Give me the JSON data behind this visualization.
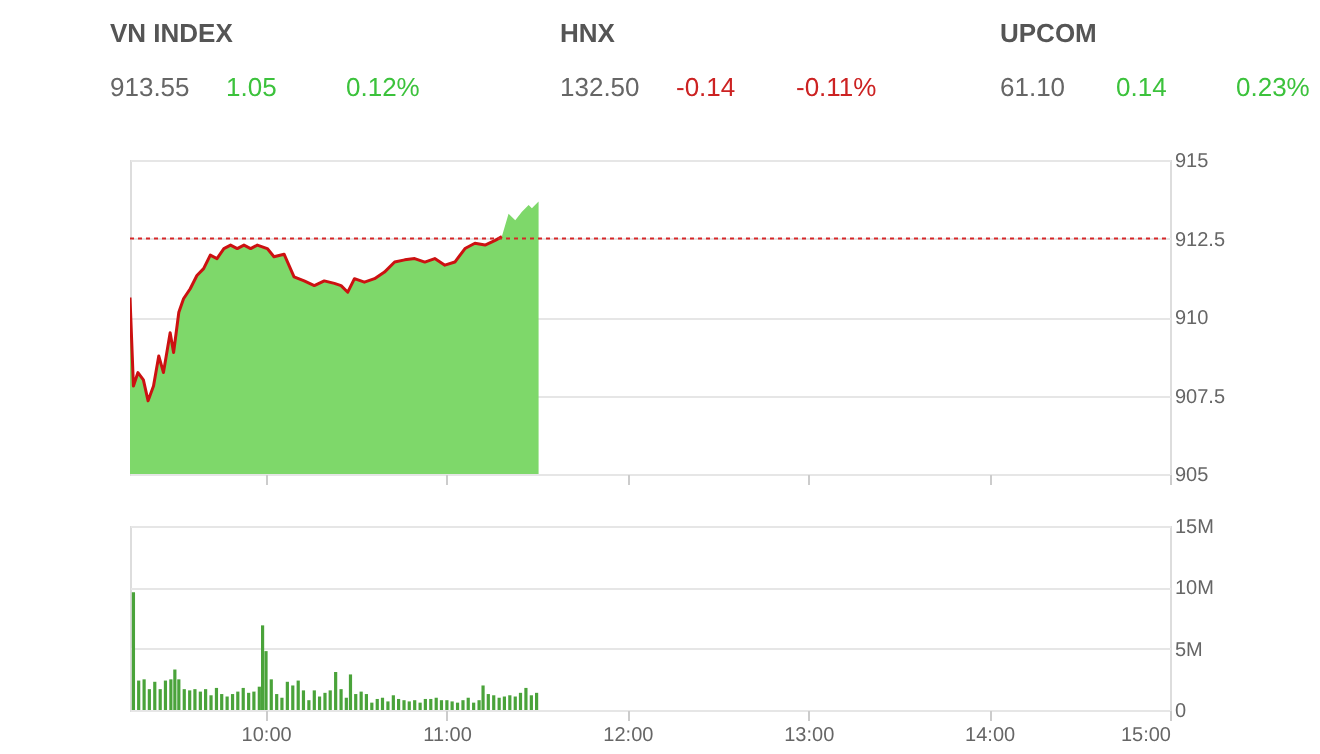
{
  "chart_data": [
    {
      "type": "other",
      "annotations": [
        "VN INDEX",
        "913.55",
        "1.05",
        "0.12%",
        "HNX",
        "132.50",
        "-0.14",
        "-0.11%",
        "UPCOM",
        "61.10",
        "0.14",
        "0.23%"
      ],
      "colors": [
        "#555555",
        "#666666",
        "#3cc23c",
        "#3cc23c",
        "#555555",
        "#666666",
        "#cc2222",
        "#cc2222",
        "#555555",
        "#666666",
        "#3cc23c",
        "#3cc23c"
      ]
    },
    {
      "type": "line",
      "xlim": [
        9.25,
        15
      ],
      "ylim": [
        905,
        915
      ],
      "yticks": [
        905,
        907.5,
        910,
        912.5,
        915
      ],
      "xticks": [
        {
          "value": 10,
          "label": null
        },
        {
          "value": 11,
          "label": null
        },
        {
          "value": 12,
          "label": null
        },
        {
          "value": 13,
          "label": null
        },
        {
          "value": 14,
          "label": null
        },
        {
          "value": 15,
          "label": null
        }
      ],
      "tick_labels": "y",
      "grid": "y",
      "ref_lines": [
        {
          "axis": "y",
          "value": 912.5,
          "color": "#d62728",
          "line_style": "dotted"
        }
      ],
      "x": [
        9.25,
        9.269,
        9.294,
        9.324,
        9.35,
        9.38,
        9.409,
        9.435,
        9.472,
        9.491,
        9.52,
        9.546,
        9.583,
        9.62,
        9.657,
        9.694,
        9.731,
        9.769,
        9.806,
        9.843,
        9.88,
        9.917,
        9.954,
        10.009,
        10.046,
        10.102,
        10.157,
        10.213,
        10.269,
        10.324,
        10.38,
        10.417,
        10.454,
        10.491,
        10.546,
        10.602,
        10.657,
        10.713,
        10.769,
        10.824,
        10.88,
        10.935,
        10.991,
        11.046,
        11.102,
        11.157,
        11.213,
        11.269,
        11.306,
        11.343,
        11.38,
        11.417,
        11.454,
        11.472,
        11.509
      ],
      "series": [
        {
          "type": "area",
          "color": "#7ed86a",
          "values": [
            910.62,
            907.8,
            908.23,
            908.0,
            907.33,
            907.8,
            908.76,
            908.23,
            909.5,
            908.87,
            910.15,
            910.58,
            910.9,
            911.32,
            911.54,
            911.97,
            911.86,
            912.18,
            912.29,
            912.18,
            912.29,
            912.18,
            912.29,
            912.18,
            911.92,
            912.0,
            911.28,
            911.15,
            911.0,
            911.15,
            911.07,
            911.0,
            910.79,
            911.22,
            911.11,
            911.22,
            911.43,
            911.75,
            911.82,
            911.86,
            911.75,
            911.86,
            911.65,
            911.75,
            912.18,
            912.35,
            912.29,
            912.44,
            912.56,
            913.29,
            913.08,
            913.35,
            913.57,
            913.46,
            913.68
          ]
        },
        {
          "type": "line",
          "color": "#cc1111",
          "x": [
            9.25,
            9.269,
            9.294,
            9.324,
            9.35,
            9.38,
            9.409,
            9.435,
            9.472,
            9.491,
            9.52,
            9.546,
            9.583,
            9.62,
            9.657,
            9.694,
            9.731,
            9.769,
            9.806,
            9.843,
            9.88,
            9.917,
            9.954,
            10.009,
            10.046,
            10.102,
            10.157,
            10.213,
            10.269,
            10.324,
            10.38,
            10.417,
            10.454,
            10.491,
            10.546,
            10.602,
            10.657,
            10.713,
            10.769,
            10.824,
            10.88,
            10.935,
            10.991,
            11.046,
            11.102,
            11.157,
            11.213,
            11.269,
            11.306
          ],
          "values": [
            910.62,
            907.8,
            908.23,
            908.0,
            907.33,
            907.8,
            908.76,
            908.23,
            909.5,
            908.87,
            910.15,
            910.58,
            910.9,
            911.32,
            911.54,
            911.97,
            911.86,
            912.18,
            912.29,
            912.18,
            912.29,
            912.18,
            912.29,
            912.18,
            911.92,
            912.0,
            911.28,
            911.15,
            911.0,
            911.15,
            911.07,
            911.0,
            910.79,
            911.22,
            911.11,
            911.22,
            911.43,
            911.75,
            911.82,
            911.86,
            911.75,
            911.86,
            911.65,
            911.75,
            912.18,
            912.35,
            912.29,
            912.44,
            912.56
          ]
        }
      ]
    },
    {
      "type": "bar",
      "xlim": [
        9.25,
        15
      ],
      "ylim": [
        0,
        15000000
      ],
      "yticks": [
        0,
        {
          "value": 5000000,
          "label": "5M"
        },
        {
          "value": 10000000,
          "label": "10M"
        },
        {
          "value": 15000000,
          "label": "15M"
        }
      ],
      "xticks": [
        {
          "value": 10,
          "label": "10:00"
        },
        {
          "value": 11,
          "label": "11:00"
        },
        {
          "value": 12,
          "label": "12:00"
        },
        {
          "value": 13,
          "label": "13:00"
        },
        {
          "value": 14,
          "label": "14:00"
        },
        {
          "value": 15,
          "label": "15:00"
        }
      ],
      "grid": "y",
      "color": "#4aa33a",
      "x": [
        9.269,
        9.298,
        9.328,
        9.357,
        9.387,
        9.417,
        9.446,
        9.476,
        9.498,
        9.52,
        9.55,
        9.58,
        9.609,
        9.639,
        9.668,
        9.698,
        9.728,
        9.757,
        9.787,
        9.817,
        9.846,
        9.876,
        9.906,
        9.935,
        9.965,
        9.983,
        10.002,
        10.031,
        10.061,
        10.09,
        10.12,
        10.15,
        10.18,
        10.209,
        10.239,
        10.269,
        10.298,
        10.328,
        10.357,
        10.387,
        10.417,
        10.446,
        10.469,
        10.498,
        10.528,
        10.557,
        10.587,
        10.617,
        10.646,
        10.676,
        10.706,
        10.735,
        10.765,
        10.794,
        10.824,
        10.854,
        10.883,
        10.913,
        10.943,
        10.972,
        11.002,
        11.031,
        11.061,
        11.091,
        11.12,
        11.15,
        11.18,
        11.202,
        11.231,
        11.261,
        11.291,
        11.32,
        11.35,
        11.38,
        11.409,
        11.439,
        11.469,
        11.498
      ],
      "values": [
        9600000,
        2400000,
        2500000,
        1700000,
        2300000,
        1700000,
        2400000,
        2500000,
        3300000,
        2500000,
        1700000,
        1600000,
        1700000,
        1500000,
        1700000,
        1200000,
        1800000,
        1300000,
        1100000,
        1300000,
        1500000,
        1800000,
        1400000,
        1500000,
        1900000,
        6900000,
        4800000,
        2500000,
        1300000,
        1000000,
        2300000,
        2000000,
        2400000,
        1600000,
        800000,
        1600000,
        1100000,
        1400000,
        1600000,
        3100000,
        1700000,
        1000000,
        2900000,
        1300000,
        1500000,
        1300000,
        600000,
        900000,
        1000000,
        700000,
        1200000,
        900000,
        800000,
        700000,
        800000,
        600000,
        900000,
        900000,
        1000000,
        800000,
        800000,
        700000,
        600000,
        800000,
        1000000,
        600000,
        800000,
        2000000,
        1300000,
        1200000,
        1000000,
        1100000,
        1200000,
        1100000,
        1400000,
        1800000,
        1200000,
        1400000
      ]
    }
  ]
}
